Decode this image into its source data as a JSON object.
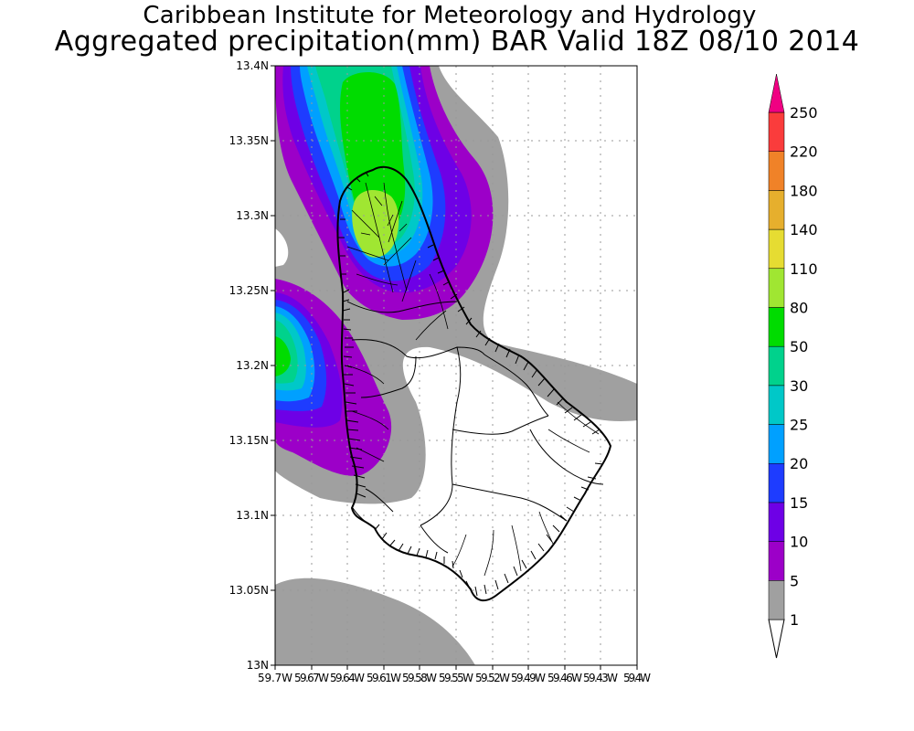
{
  "header": {
    "line1": "Caribbean Institute for Meteorology and Hydrology",
    "line2": "Aggregated precipitation(mm) BAR Valid 18Z 08/10 2014"
  },
  "map": {
    "lat_labels": [
      "13.4N",
      "13.35N",
      "13.3N",
      "13.25N",
      "13.2N",
      "13.15N",
      "13.1N",
      "13.05N",
      "13N"
    ],
    "lon_labels": [
      "59.7W",
      "59.67W",
      "59.64W",
      "59.61W",
      "59.58W",
      "59.55W",
      "59.52W",
      "59.49W",
      "59.46W",
      "59.43W",
      "59.4W"
    ]
  },
  "colorbar": {
    "levels": [
      {
        "label": "1",
        "color": "#a0a0a0"
      },
      {
        "label": "5",
        "color": "#9c00c8"
      },
      {
        "label": "10",
        "color": "#6e00e6"
      },
      {
        "label": "15",
        "color": "#1e3cff"
      },
      {
        "label": "20",
        "color": "#00a0ff"
      },
      {
        "label": "25",
        "color": "#00c8c8"
      },
      {
        "label": "30",
        "color": "#00d28c"
      },
      {
        "label": "50",
        "color": "#00dc00"
      },
      {
        "label": "80",
        "color": "#a0e632"
      },
      {
        "label": "110",
        "color": "#e6dc32"
      },
      {
        "label": "140",
        "color": "#e6af2d"
      },
      {
        "label": "180",
        "color": "#f08228"
      },
      {
        "label": "220",
        "color": "#fa3c3c"
      },
      {
        "label": "250",
        "color": "#f00082"
      }
    ]
  }
}
